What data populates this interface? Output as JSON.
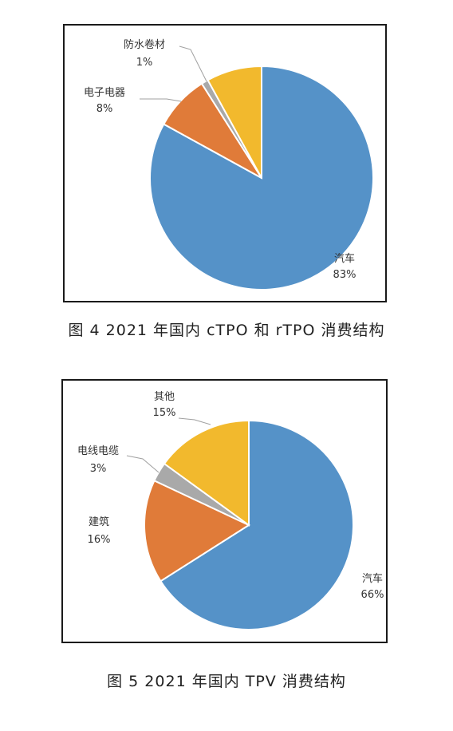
{
  "figures": [
    {
      "caption": "图 4  2021 年国内 cTPO 和 rTPO 消费结构"
    },
    {
      "caption": "图 5  2021 年国内 TPV 消费结构"
    }
  ],
  "chart_data": [
    {
      "type": "pie",
      "title": "",
      "slices": [
        {
          "label": "汽车",
          "value": 83,
          "value_label": "83%",
          "color": "#5592c8"
        },
        {
          "label": "电子电器",
          "value": 8,
          "value_label": "8%",
          "color": "#e07b39"
        },
        {
          "label": "防水卷材",
          "value": 1,
          "value_label": "1%",
          "color": "#a9a9a9"
        },
        {
          "label": "",
          "value": 8,
          "value_label": "",
          "color": "#f2b92d"
        }
      ]
    },
    {
      "type": "pie",
      "title": "",
      "slices": [
        {
          "label": "汽车",
          "value": 66,
          "value_label": "66%",
          "color": "#5592c8"
        },
        {
          "label": "建筑",
          "value": 16,
          "value_label": "16%",
          "color": "#e07b39"
        },
        {
          "label": "电线电缆",
          "value": 3,
          "value_label": "3%",
          "color": "#a9a9a9"
        },
        {
          "label": "其他",
          "value": 15,
          "value_label": "15%",
          "color": "#f2b92d"
        }
      ]
    }
  ]
}
